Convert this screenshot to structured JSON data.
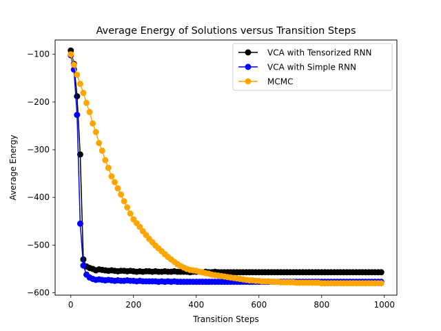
{
  "chart_data": {
    "type": "line",
    "title": "Average Energy of Solutions versus Transition Steps",
    "xlabel": "Transition Steps",
    "ylabel": "Average Energy",
    "xlim": [
      -50,
      1040
    ],
    "ylim": [
      -605,
      -70
    ],
    "xticks": [
      0,
      200,
      400,
      600,
      800,
      1000
    ],
    "yticks": [
      -100,
      -200,
      -300,
      -400,
      -500,
      -600
    ],
    "xtick_labels": [
      "0",
      "200",
      "400",
      "600",
      "800",
      "1000"
    ],
    "ytick_labels": [
      "−100",
      "−200",
      "−300",
      "−400",
      "−500",
      "−600"
    ],
    "legend_position": "top-right",
    "grid": false,
    "series": [
      {
        "name": "VCA with Tensorized RNN",
        "color": "#000000",
        "x": [
          0,
          10,
          20,
          30,
          40,
          50,
          60,
          70,
          80,
          90,
          100,
          110,
          120,
          130,
          140,
          150,
          160,
          170,
          180,
          190,
          200,
          210,
          220,
          230,
          240,
          250,
          260,
          270,
          280,
          290,
          300,
          310,
          320,
          330,
          340,
          350,
          360,
          370,
          380,
          390,
          400,
          410,
          420,
          430,
          440,
          450,
          460,
          470,
          480,
          490,
          500,
          510,
          520,
          530,
          540,
          550,
          560,
          570,
          580,
          590,
          600,
          610,
          620,
          630,
          640,
          650,
          660,
          670,
          680,
          690,
          700,
          710,
          720,
          730,
          740,
          750,
          760,
          770,
          780,
          790,
          800,
          810,
          820,
          830,
          840,
          850,
          860,
          870,
          880,
          890,
          900,
          910,
          920,
          930,
          940,
          950,
          960,
          970,
          980,
          990
        ],
        "y": [
          -92,
          -120,
          -188,
          -310,
          -530,
          -545,
          -548,
          -550,
          -553,
          -551,
          -552,
          -553,
          -554,
          -553,
          -554,
          -555,
          -554,
          -554,
          -555,
          -554,
          -555,
          -556,
          -555,
          -556,
          -555,
          -555,
          -556,
          -555,
          -556,
          -556,
          -555,
          -556,
          -556,
          -555,
          -556,
          -556,
          -556,
          -556,
          -557,
          -556,
          -556,
          -556,
          -557,
          -556,
          -557,
          -557,
          -556,
          -557,
          -557,
          -557,
          -557,
          -557,
          -557,
          -557,
          -557,
          -557,
          -557,
          -557,
          -557,
          -557,
          -557,
          -557,
          -557,
          -557,
          -557,
          -557,
          -557,
          -557,
          -557,
          -557,
          -557,
          -557,
          -557,
          -557,
          -557,
          -557,
          -557,
          -557,
          -557,
          -557,
          -557,
          -557,
          -557,
          -557,
          -557,
          -557,
          -557,
          -557,
          -557,
          -557,
          -557,
          -557,
          -557,
          -557,
          -557,
          -557,
          -557,
          -557,
          -557,
          -557
        ]
      },
      {
        "name": "VCA with Simple RNN",
        "color": "#0000ff",
        "x": [
          0,
          10,
          20,
          30,
          40,
          50,
          60,
          70,
          80,
          90,
          100,
          110,
          120,
          130,
          140,
          150,
          160,
          170,
          180,
          190,
          200,
          210,
          220,
          230,
          240,
          250,
          260,
          270,
          280,
          290,
          300,
          310,
          320,
          330,
          340,
          350,
          360,
          370,
          380,
          390,
          400,
          410,
          420,
          430,
          440,
          450,
          460,
          470,
          480,
          490,
          500,
          510,
          520,
          530,
          540,
          550,
          560,
          570,
          580,
          590,
          600,
          610,
          620,
          630,
          640,
          650,
          660,
          670,
          680,
          690,
          700,
          710,
          720,
          730,
          740,
          750,
          760,
          770,
          780,
          790,
          800,
          810,
          820,
          830,
          840,
          850,
          860,
          870,
          880,
          890,
          900,
          910,
          920,
          930,
          940,
          950,
          960,
          970,
          980,
          990
        ],
        "y": [
          -102,
          -132,
          -227,
          -455,
          -543,
          -562,
          -568,
          -571,
          -573,
          -572,
          -573,
          -574,
          -573,
          -574,
          -575,
          -574,
          -575,
          -575,
          -574,
          -575,
          -575,
          -576,
          -575,
          -576,
          -576,
          -576,
          -576,
          -576,
          -577,
          -576,
          -577,
          -576,
          -577,
          -576,
          -577,
          -577,
          -577,
          -577,
          -577,
          -577,
          -577,
          -577,
          -577,
          -577,
          -577,
          -577,
          -577,
          -577,
          -577,
          -577,
          -577,
          -577,
          -577,
          -577,
          -577,
          -577,
          -577,
          -577,
          -577,
          -577,
          -577,
          -577,
          -577,
          -577,
          -577,
          -577,
          -577,
          -577,
          -577,
          -577,
          -577,
          -577,
          -577,
          -577,
          -577,
          -577,
          -577,
          -577,
          -577,
          -577,
          -577,
          -577,
          -577,
          -577,
          -577,
          -577,
          -577,
          -577,
          -577,
          -577,
          -577,
          -577,
          -577,
          -577,
          -577,
          -577,
          -577,
          -577,
          -577,
          -577
        ]
      },
      {
        "name": "MCMC",
        "color": "#ffa500",
        "x": [
          0,
          10,
          20,
          30,
          40,
          50,
          60,
          70,
          80,
          90,
          100,
          110,
          120,
          130,
          140,
          150,
          160,
          170,
          180,
          190,
          200,
          210,
          220,
          230,
          240,
          250,
          260,
          270,
          280,
          290,
          300,
          310,
          320,
          330,
          340,
          350,
          360,
          370,
          380,
          390,
          400,
          410,
          420,
          430,
          440,
          450,
          460,
          470,
          480,
          490,
          500,
          510,
          520,
          530,
          540,
          550,
          560,
          570,
          580,
          590,
          600,
          610,
          620,
          630,
          640,
          650,
          660,
          670,
          680,
          690,
          700,
          710,
          720,
          730,
          740,
          750,
          760,
          770,
          780,
          790,
          800,
          810,
          820,
          830,
          840,
          850,
          860,
          870,
          880,
          890,
          900,
          910,
          920,
          930,
          940,
          950,
          960,
          970,
          980,
          990
        ],
        "y": [
          -100,
          -122,
          -143,
          -162,
          -181,
          -202,
          -221,
          -245,
          -263,
          -286,
          -302,
          -322,
          -338,
          -356,
          -368,
          -381,
          -394,
          -408,
          -421,
          -434,
          -446,
          -454,
          -462,
          -471,
          -479,
          -487,
          -494,
          -501,
          -507,
          -513,
          -519,
          -525,
          -530,
          -535,
          -540,
          -544,
          -547,
          -550,
          -552,
          -553,
          -554,
          -556,
          -557,
          -559,
          -560,
          -562,
          -563,
          -564,
          -565,
          -566,
          -567,
          -568,
          -569,
          -570,
          -571,
          -572,
          -573,
          -574,
          -574,
          -575,
          -575,
          -576,
          -576,
          -576,
          -577,
          -577,
          -577,
          -578,
          -578,
          -578,
          -578,
          -578,
          -579,
          -579,
          -579,
          -579,
          -579,
          -579,
          -579,
          -579,
          -580,
          -580,
          -580,
          -580,
          -580,
          -580,
          -580,
          -580,
          -580,
          -580,
          -580,
          -580,
          -580,
          -580,
          -580,
          -580,
          -580,
          -580,
          -580,
          -580
        ]
      }
    ]
  }
}
